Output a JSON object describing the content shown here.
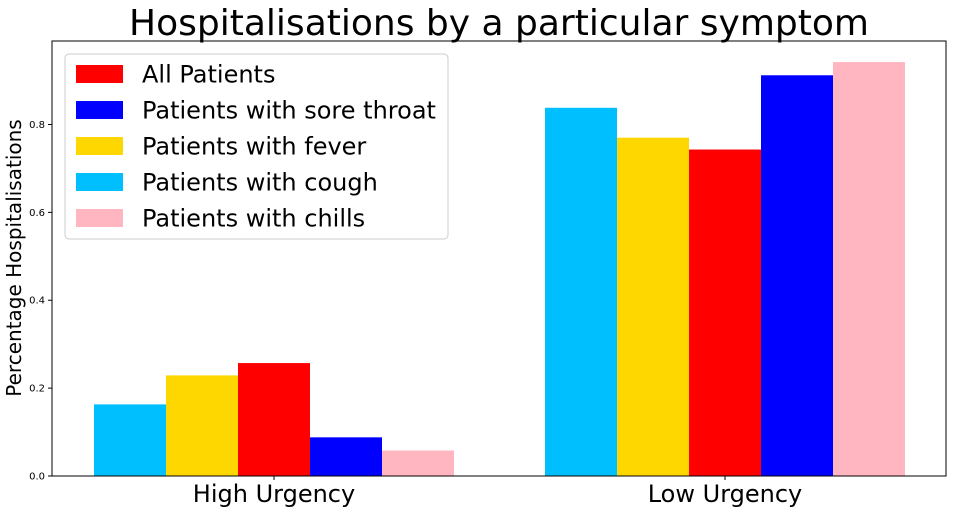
{
  "chart_data": {
    "type": "bar",
    "title": "Hospitalisations by a particular symptom",
    "xlabel": "",
    "ylabel": "Percentage Hospitalisations",
    "ylim": [
      0,
      0.99
    ],
    "yticks": [
      "0.0",
      "0.2",
      "0.4",
      "0.6",
      "0.8"
    ],
    "categories": [
      "High Urgency",
      "Low Urgency"
    ],
    "legend_position": "top-left",
    "grid": false,
    "series": [
      {
        "name": "Patients with cough",
        "color": "#00BFFF",
        "values": [
          0.163,
          0.838
        ]
      },
      {
        "name": "Patients with fever",
        "color": "#FFD700",
        "values": [
          0.229,
          0.77
        ]
      },
      {
        "name": "All Patients",
        "color": "#FF0000",
        "values": [
          0.257,
          0.743
        ]
      },
      {
        "name": "Patients with sore throat",
        "color": "#0000FF",
        "values": [
          0.088,
          0.912
        ]
      },
      {
        "name": "Patients with chills",
        "color": "#FFB6C1",
        "values": [
          0.058,
          0.942
        ]
      }
    ],
    "legend": [
      {
        "name": "All Patients",
        "color": "#FF0000"
      },
      {
        "name": "Patients with sore throat",
        "color": "#0000FF"
      },
      {
        "name": "Patients with fever",
        "color": "#FFD700"
      },
      {
        "name": "Patients with cough",
        "color": "#00BFFF"
      },
      {
        "name": "Patients with chills",
        "color": "#FFB6C1"
      }
    ]
  }
}
